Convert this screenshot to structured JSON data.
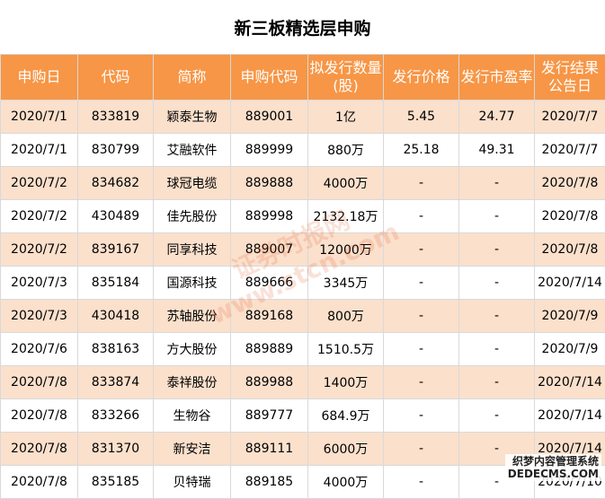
{
  "title": "新三板精选层申购",
  "headers": [
    "申购日",
    "代码",
    "简称",
    "申购代码",
    "拟发行数量(股)",
    "发行价格",
    "发行市盈率",
    "发行结果公告日"
  ],
  "rows": [
    [
      "2020/7/1",
      "833819",
      "颖泰生物",
      "889001",
      "1亿",
      "5.45",
      "24.77",
      "2020/7/7"
    ],
    [
      "2020/7/1",
      "830799",
      "艾融软件",
      "889999",
      "880万",
      "25.18",
      "49.31",
      "2020/7/7"
    ],
    [
      "2020/7/2",
      "834682",
      "球冠电缆",
      "889888",
      "4000万",
      "-",
      "-",
      "2020/7/8"
    ],
    [
      "2020/7/2",
      "430489",
      "佳先股份",
      "889998",
      "2132.18万",
      "-",
      "-",
      "2020/7/8"
    ],
    [
      "2020/7/2",
      "839167",
      "同享科技",
      "889007",
      "12000万",
      "-",
      "-",
      "2020/7/8"
    ],
    [
      "2020/7/3",
      "835184",
      "国源科技",
      "889666",
      "3345万",
      "-",
      "-",
      "2020/7/14"
    ],
    [
      "2020/7/3",
      "430418",
      "苏轴股份",
      "889168",
      "800万",
      "-",
      "-",
      "2020/7/9"
    ],
    [
      "2020/7/6",
      "838163",
      "方大股份",
      "889889",
      "1510.5万",
      "-",
      "-",
      "2020/7/9"
    ],
    [
      "2020/7/8",
      "833874",
      "泰祥股份",
      "889988",
      "1400万",
      "-",
      "-",
      "2020/7/14"
    ],
    [
      "2020/7/8",
      "833266",
      "生物谷",
      "889777",
      "684.9万",
      "-",
      "-",
      "2020/7/14"
    ],
    [
      "2020/7/8",
      "831370",
      "新安洁",
      "889111",
      "6000万",
      "-",
      "-",
      "2020/7/14"
    ],
    [
      "2020/7/8",
      "835185",
      "贝特瑞",
      "889185",
      "4000万",
      "-",
      "-",
      "2020/7/10"
    ]
  ],
  "watermark": "证券时报网 www.stcn.com",
  "logo": {
    "line1": "织梦内容管理系统",
    "line2": "DEDECMS.COM"
  },
  "colors": {
    "header_bg": "#f79646",
    "row_alt_bg": "#fbe0cc"
  }
}
